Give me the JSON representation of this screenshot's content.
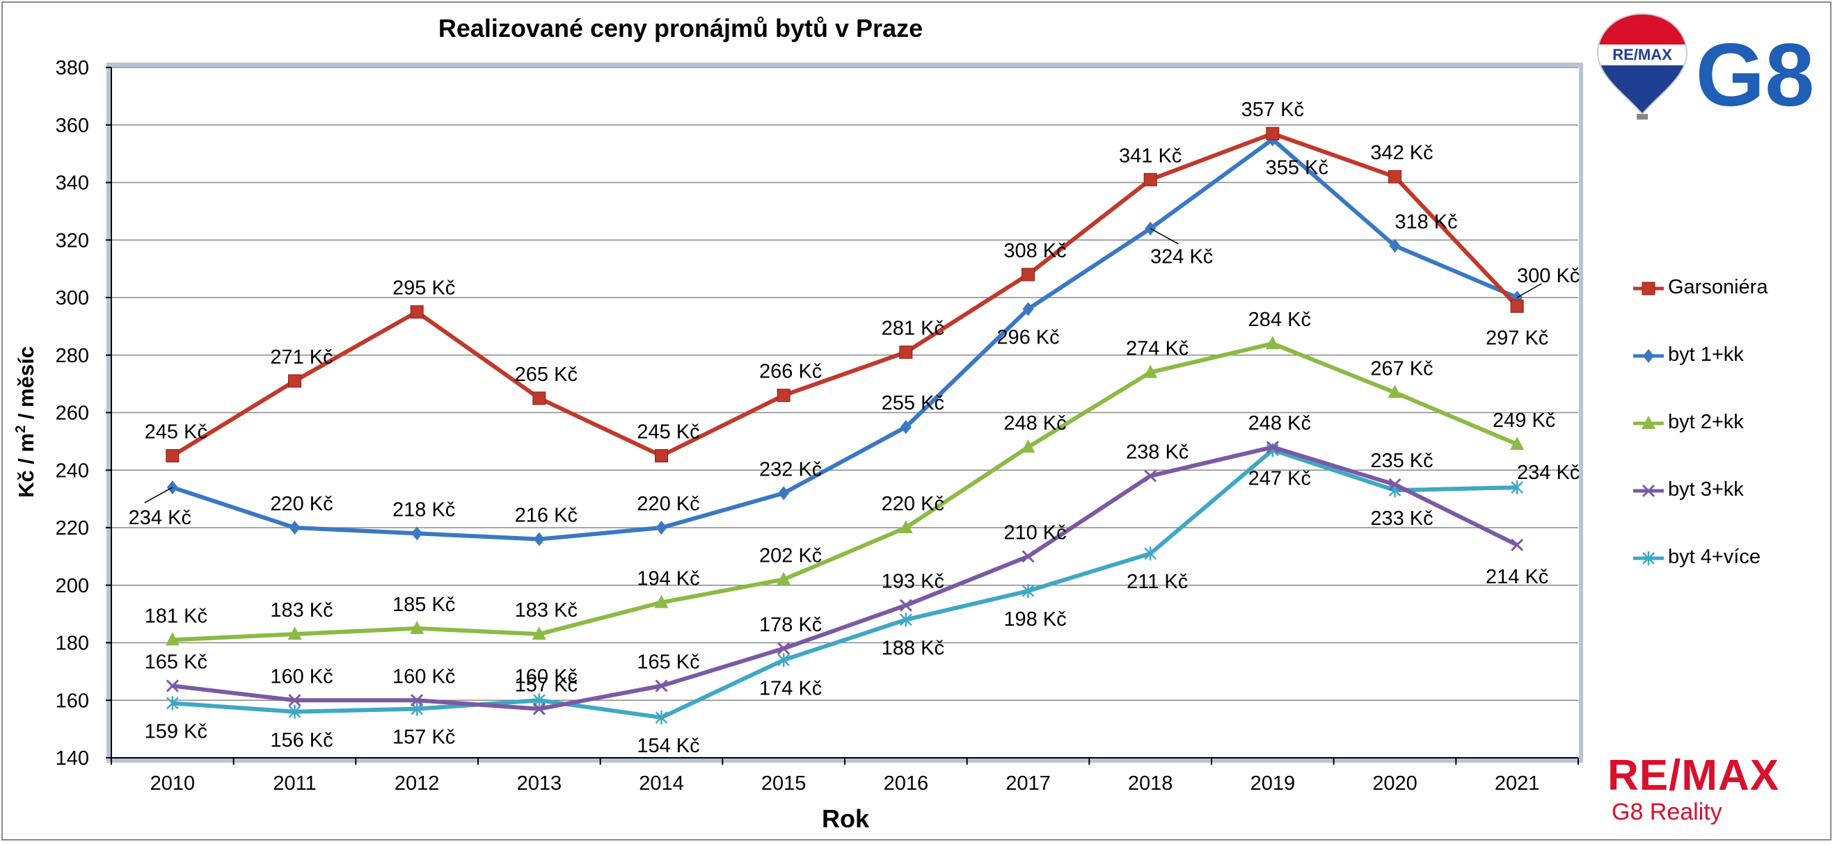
{
  "chart_data": {
    "type": "line",
    "title": "Realizované ceny pronájmů bytů v Praze",
    "xlabel": "Rok",
    "ylabel_main": "Kč / m",
    "ylabel_sup": "2",
    "ylabel_rest": " / měsíc",
    "ylim": [
      140,
      380
    ],
    "yticks": [
      "140",
      "160",
      "180",
      "200",
      "220",
      "240",
      "260",
      "280",
      "300",
      "320",
      "340",
      "360",
      "380"
    ],
    "categories": [
      "2010",
      "2011",
      "2012",
      "2013",
      "2014",
      "2015",
      "2016",
      "2017",
      "2018",
      "2019",
      "2020",
      "2021"
    ],
    "grid": true,
    "legend_position": "right",
    "value_suffix": " Kč",
    "series": [
      {
        "name": "Garsoniéra",
        "color": "#c0392b",
        "marker": "square",
        "values": [
          245,
          271,
          295,
          265,
          245,
          266,
          281,
          308,
          341,
          357,
          342,
          297
        ]
      },
      {
        "name": "byt 1+kk",
        "color": "#3a78c3",
        "marker": "diamond",
        "values": [
          234,
          220,
          218,
          216,
          220,
          232,
          255,
          296,
          324,
          355,
          318,
          300
        ]
      },
      {
        "name": "byt 2+kk",
        "color": "#8cba45",
        "marker": "triangle",
        "values": [
          181,
          183,
          185,
          183,
          194,
          202,
          220,
          248,
          274,
          284,
          267,
          249
        ]
      },
      {
        "name": "byt 3+kk",
        "color": "#7b59a3",
        "marker": "x",
        "values": [
          165,
          160,
          160,
          157,
          165,
          178,
          193,
          210,
          238,
          248,
          235,
          214
        ]
      },
      {
        "name": "byt 4+více",
        "color": "#3ea8c4",
        "marker": "star",
        "values": [
          159,
          156,
          157,
          160,
          154,
          174,
          188,
          198,
          211,
          247,
          233,
          234
        ]
      }
    ]
  },
  "logos": {
    "top_balloon": "RE/MAX",
    "top_brand": "G8",
    "bottom_brand": "RE/MAX",
    "bottom_sub": "G8 Reality"
  },
  "colors": {
    "remax_red": "#d8102c",
    "remax_blue": "#1f3f93",
    "g8_blue": "#1f5fb5"
  }
}
